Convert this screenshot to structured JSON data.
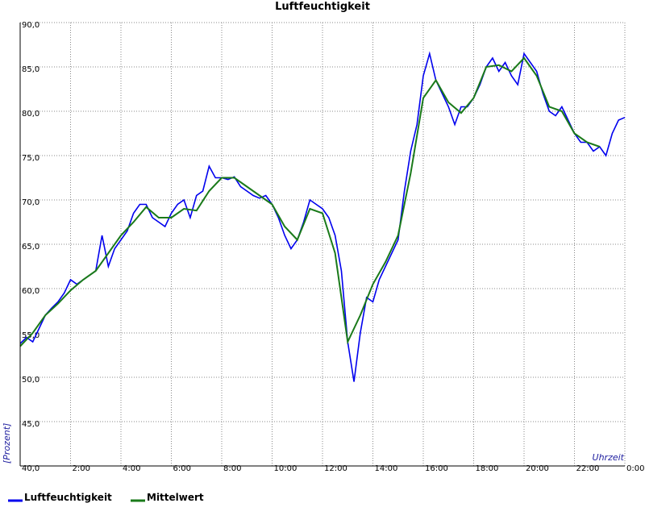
{
  "chart_data": {
    "type": "line",
    "title": "Luftfeuchtigkeit",
    "ylabel": "[Prozent]",
    "xlabel": "Uhrzeit",
    "xlim": [
      0,
      24
    ],
    "ylim": [
      40,
      90
    ],
    "xticks": [
      {
        "value": 2,
        "label": "2:00"
      },
      {
        "value": 4,
        "label": "4:00"
      },
      {
        "value": 6,
        "label": "6:00"
      },
      {
        "value": 8,
        "label": "8:00"
      },
      {
        "value": 10,
        "label": "10:00"
      },
      {
        "value": 12,
        "label": "12:00"
      },
      {
        "value": 14,
        "label": "14:00"
      },
      {
        "value": 16,
        "label": "16:00"
      },
      {
        "value": 18,
        "label": "18:00"
      },
      {
        "value": 20,
        "label": "20:00"
      },
      {
        "value": 22,
        "label": "22:00"
      },
      {
        "value": 24,
        "label": "0:00"
      }
    ],
    "yticks": [
      {
        "value": 40,
        "label": "40,0"
      },
      {
        "value": 45,
        "label": "45,0"
      },
      {
        "value": 50,
        "label": "50,0"
      },
      {
        "value": 55,
        "label": "55,0"
      },
      {
        "value": 60,
        "label": "60,0"
      },
      {
        "value": 65,
        "label": "65,0"
      },
      {
        "value": 70,
        "label": "70,0"
      },
      {
        "value": 75,
        "label": "75,0"
      },
      {
        "value": 80,
        "label": "80,0"
      },
      {
        "value": 85,
        "label": "85,0"
      },
      {
        "value": 90,
        "label": "90,0"
      }
    ],
    "grid": true,
    "series": [
      {
        "name": "Luftfeuchtigkeit",
        "color": "#0000ee",
        "x": [
          0,
          0.25,
          0.5,
          0.75,
          1,
          1.25,
          1.5,
          1.75,
          2,
          2.25,
          2.5,
          2.75,
          3,
          3.25,
          3.5,
          3.75,
          4,
          4.25,
          4.5,
          4.75,
          5,
          5.25,
          5.5,
          5.75,
          6,
          6.25,
          6.5,
          6.75,
          7,
          7.25,
          7.5,
          7.75,
          8,
          8.25,
          8.5,
          8.75,
          9,
          9.25,
          9.5,
          9.75,
          10,
          10.25,
          10.5,
          10.75,
          11,
          11.25,
          11.5,
          11.75,
          12,
          12.25,
          12.5,
          12.75,
          13,
          13.25,
          13.5,
          13.75,
          14,
          14.25,
          14.5,
          14.75,
          15,
          15.25,
          15.5,
          15.75,
          16,
          16.25,
          16.5,
          16.75,
          17,
          17.25,
          17.5,
          17.75,
          18,
          18.25,
          18.5,
          18.75,
          19,
          19.25,
          19.5,
          19.75,
          20,
          20.25,
          20.5,
          20.75,
          21,
          21.25,
          21.5,
          21.75,
          22,
          22.25,
          22.5,
          22.75,
          23,
          23.25,
          23.5,
          23.75,
          24
        ],
        "values": [
          53.8,
          54.5,
          54,
          55.5,
          57,
          57.8,
          58.5,
          59.5,
          61,
          60.5,
          61,
          61.5,
          62,
          66,
          62.5,
          64.5,
          65.5,
          66.5,
          68.5,
          69.5,
          69.5,
          68,
          67.5,
          67,
          68.5,
          69.5,
          70,
          68,
          70.5,
          71,
          73.8,
          72.5,
          72.5,
          72.3,
          72.6,
          71.5,
          71,
          70.5,
          70.2,
          70.5,
          69.5,
          68,
          66,
          64.5,
          65.5,
          67.5,
          70,
          69.5,
          69,
          68,
          66,
          62,
          54,
          49.5,
          55,
          59,
          58.5,
          61,
          62.5,
          64,
          65.5,
          71,
          75.5,
          78.5,
          84,
          86.5,
          83.5,
          82,
          80.5,
          78.5,
          80.5,
          80.5,
          81.5,
          83,
          85,
          86,
          84.5,
          85.5,
          84,
          83,
          86.5,
          85.5,
          84.5,
          82,
          80,
          79.5,
          80.5,
          79,
          77.5,
          76.5,
          76.5,
          75.5,
          76,
          75,
          77.5,
          79,
          79.3
        ]
      },
      {
        "name": "Mittelwert",
        "color": "#1a7a1a",
        "x": [
          0,
          0.5,
          1,
          1.5,
          2,
          2.5,
          3,
          3.5,
          4,
          4.5,
          5,
          5.5,
          6,
          6.5,
          7,
          7.5,
          8,
          8.5,
          9,
          9.5,
          10,
          10.5,
          11,
          11.5,
          12,
          12.5,
          13,
          13.5,
          14,
          14.5,
          15,
          15.5,
          16,
          16.5,
          17,
          17.5,
          18,
          18.5,
          19,
          19.5,
          20,
          20.5,
          21,
          21.5,
          22,
          22.5,
          23
        ],
        "values": [
          53.5,
          55,
          57,
          58.3,
          59.8,
          61,
          62,
          64,
          66,
          67.5,
          69.2,
          68,
          68,
          69,
          68.8,
          71,
          72.5,
          72.5,
          71.5,
          70.5,
          69.5,
          67,
          65.5,
          69,
          68.5,
          64,
          54,
          57,
          60.5,
          63,
          66,
          73,
          81.5,
          83.5,
          81,
          79.8,
          81.5,
          85,
          85.2,
          84.5,
          86,
          84,
          80.5,
          80,
          77.5,
          76.5,
          76
        ]
      }
    ]
  }
}
